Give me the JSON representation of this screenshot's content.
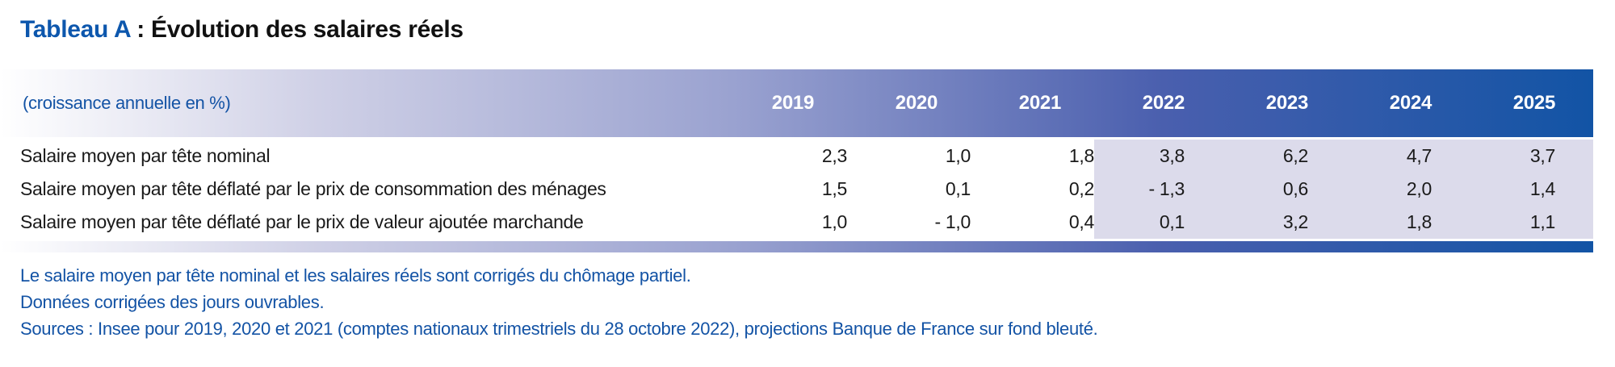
{
  "title": {
    "prefix": "Tableau A",
    "rest": " : Évolution des salaires réels"
  },
  "table": {
    "unit_label": "(croissance annuelle en %)",
    "years": [
      "2019",
      "2020",
      "2021",
      "2022",
      "2023",
      "2024",
      "2025"
    ],
    "projection_years": [
      "2022",
      "2023",
      "2024",
      "2025"
    ],
    "rows": [
      {
        "label": "Salaire moyen par tête nominal",
        "values": [
          "2,3",
          "1,0",
          "1,8",
          "3,8",
          "6,2",
          "4,7",
          "3,7"
        ]
      },
      {
        "label": "Salaire moyen par tête déflaté par le prix de consommation des ménages",
        "values": [
          "1,5",
          "0,1",
          "0,2",
          "- 1,3",
          "0,6",
          "2,0",
          "1,4"
        ]
      },
      {
        "label": "Salaire moyen par tête déflaté par le prix de valeur ajoutée marchande",
        "values": [
          "1,0",
          "- 1,0",
          "0,4",
          "0,1",
          "3,2",
          "1,8",
          "1,1"
        ]
      }
    ]
  },
  "notes": [
    "Le salaire moyen par tête nominal et les salaires réels sont corrigés du chômage partiel.",
    "Données corrigées des jours ouvrables.",
    "Sources : Insee pour 2019, 2020 et 2021 (comptes nationaux trimestriels du 28 octobre 2022), projections Banque de France sur fond bleuté."
  ],
  "colors": {
    "title_blue": "#0d57ad",
    "header_deep_blue": "#1254a5",
    "projection_background": "#dcdbeb",
    "note_text_blue": "#1353a5"
  }
}
